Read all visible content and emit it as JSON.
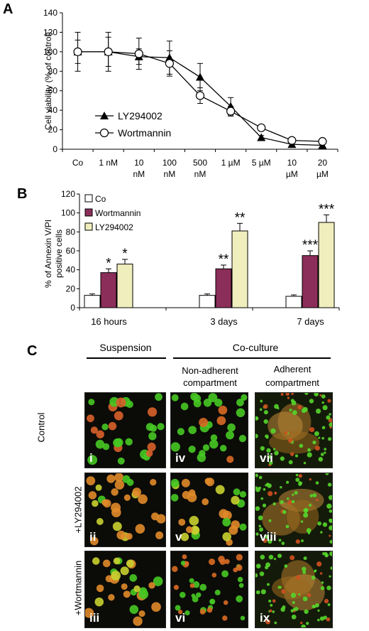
{
  "panels": {
    "a": "A",
    "b": "B",
    "c": "C"
  },
  "chart_data": [
    {
      "type": "line",
      "ylabel": "Cell viability (% of control)",
      "ylim": [
        0,
        140
      ],
      "yticks": [
        "0",
        "20",
        "40",
        "60",
        "80",
        "100",
        "120",
        "140"
      ],
      "categories": [
        "Co",
        "1 nM",
        "10 nM",
        "100 nM",
        "500 nM",
        "1 µM",
        "5 µM",
        "10 µM",
        "20 µM"
      ],
      "tick_labels": [
        [
          "Co"
        ],
        [
          "1 nM"
        ],
        [
          "10",
          "nM"
        ],
        [
          "100",
          "nM"
        ],
        [
          "500",
          "nM"
        ],
        [
          "1 µM"
        ],
        [
          "5 µM"
        ],
        [
          "10",
          "µM"
        ],
        [
          "20",
          "µM"
        ]
      ],
      "legend_position": "lower-left",
      "series": [
        {
          "name": "LY294002",
          "marker": "triangle",
          "values": [
            100,
            100,
            95,
            94,
            74,
            44,
            12,
            5,
            4
          ],
          "errors": [
            12,
            20,
            8,
            17,
            14,
            9,
            2,
            2,
            2
          ]
        },
        {
          "name": "Wortmannin",
          "marker": "circle",
          "values": [
            100,
            100,
            98,
            88,
            55,
            39,
            22,
            9,
            8
          ],
          "errors": [
            20,
            15,
            16,
            13,
            8,
            5,
            2,
            2,
            2
          ]
        }
      ]
    },
    {
      "type": "bar",
      "ylabel": [
        "% of Annexin V/PI",
        "positive cells"
      ],
      "ylim": [
        0,
        120
      ],
      "yticks": [
        "0",
        "20",
        "40",
        "60",
        "80",
        "100",
        "120"
      ],
      "categories": [
        "16 hours",
        "3 days",
        "7 days"
      ],
      "legend_position": "top-left",
      "series": [
        {
          "name": "Co",
          "color": "#ffffff",
          "values": [
            13,
            13,
            12
          ],
          "errors": [
            1.5,
            1.5,
            1.5
          ],
          "stars": [
            "",
            "",
            ""
          ]
        },
        {
          "name": "Wortmannin",
          "color": "#8c2e5a",
          "values": [
            37,
            41,
            55
          ],
          "errors": [
            4,
            4,
            5
          ],
          "stars": [
            "*",
            "**",
            "***"
          ]
        },
        {
          "name": "LY294002",
          "color": "#f0eebc",
          "values": [
            46,
            81,
            90
          ],
          "errors": [
            5,
            8,
            8
          ],
          "stars": [
            "*",
            "**",
            "***"
          ]
        }
      ]
    }
  ],
  "panel_c": {
    "col_suspension": "Suspension",
    "col_coculture": "Co-culture",
    "sub_nonadherent": [
      "Non-adherent",
      "compartment"
    ],
    "sub_adherent": [
      "Adherent",
      "compartment"
    ],
    "rows": [
      "Control",
      "+LY294002",
      "+Wortmannin"
    ],
    "numerals": [
      "i",
      "ii",
      "iii",
      "iv",
      "v",
      "vi",
      "vii",
      "viii",
      "ix"
    ]
  }
}
